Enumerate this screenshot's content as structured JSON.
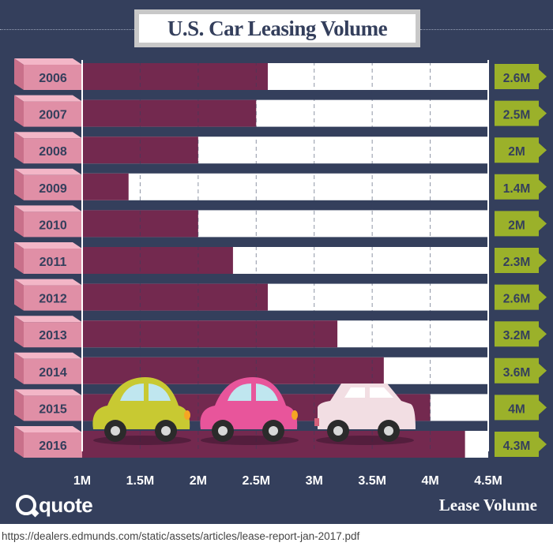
{
  "title": "U.S. Car Leasing Volume",
  "logo_text": "quote",
  "source": "https://dealers.edmunds.com/static/assets/articles/lease-report-jan-2017.pdf",
  "colors": {
    "background": "#343f5c",
    "bar": "#73294f",
    "track": "#ffffff",
    "year_tab": "#e08fa6",
    "value_tab": "#9bb12a",
    "text_dark": "#343f5c"
  },
  "chart_data": {
    "type": "bar",
    "orientation": "horizontal",
    "title": "U.S. Car Leasing Volume",
    "xlabel": "Lease Volume",
    "ylabel": "",
    "xlim": [
      1,
      4.5
    ],
    "x_ticks": [
      "1M",
      "1.5M",
      "2M",
      "2.5M",
      "3M",
      "3.5M",
      "4M",
      "4.5M"
    ],
    "grid": true,
    "categories": [
      "2006",
      "2007",
      "2008",
      "2009",
      "2010",
      "2011",
      "2012",
      "2013",
      "2014",
      "2015",
      "2016"
    ],
    "values": [
      2.6,
      2.5,
      2,
      1.4,
      2,
      2.3,
      2.6,
      3.2,
      3.6,
      4,
      4.3
    ],
    "value_labels": [
      "2.6M",
      "2.5M",
      "2M",
      "1.4M",
      "2M",
      "2.3M",
      "2.6M",
      "3.2M",
      "3.6M",
      "4M",
      "4.3M"
    ],
    "unit": "M"
  },
  "illustrations": [
    {
      "name": "car-yellow",
      "body": "#c8c932"
    },
    {
      "name": "car-pink",
      "body": "#e8559b"
    },
    {
      "name": "car-white",
      "body": "#f2dee3"
    }
  ]
}
